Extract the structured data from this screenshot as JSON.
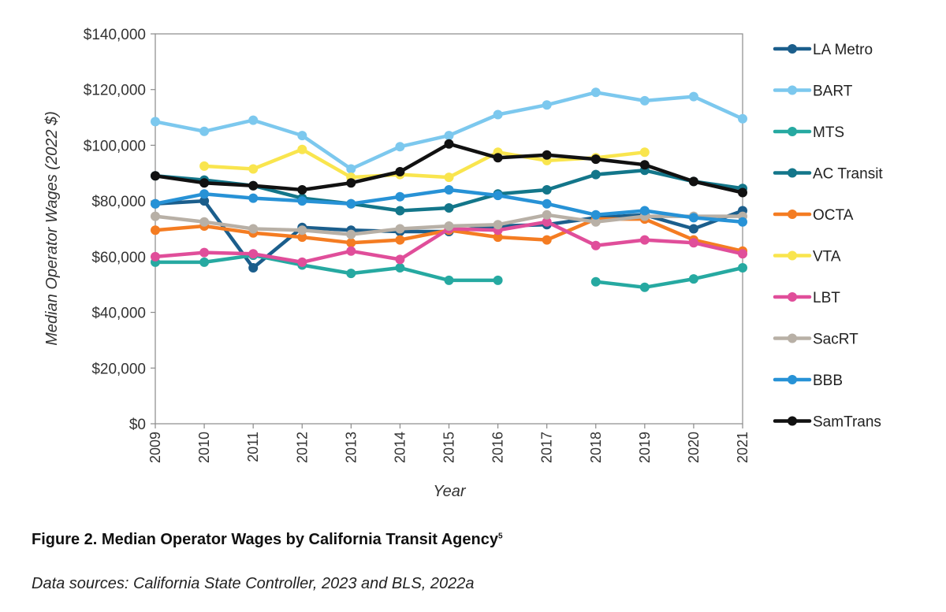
{
  "chart_data": {
    "type": "line",
    "title": "",
    "xlabel": "Year",
    "ylabel": "Median Operator Wages (2022 $)",
    "ylim": [
      0,
      140000
    ],
    "yticks": [
      "$0",
      "$20,000",
      "$40,000",
      "$60,000",
      "$80,000",
      "$100,000",
      "$120,000",
      "$140,000"
    ],
    "x": [
      "2009",
      "2010",
      "2011",
      "2012",
      "2013",
      "2014",
      "2015",
      "2016",
      "2017",
      "2018",
      "2019",
      "2020",
      "2021"
    ],
    "grid": false,
    "legend_position": "right",
    "series": [
      {
        "name": "LA Metro",
        "color": "#1b5e8c",
        "values": [
          79000,
          80000,
          56000,
          70500,
          69500,
          69000,
          69000,
          71000,
          71500,
          74000,
          75000,
          70000,
          76500
        ]
      },
      {
        "name": "BART",
        "color": "#7cc8ee",
        "values": [
          108500,
          105000,
          109000,
          103500,
          91500,
          99500,
          103500,
          111000,
          114500,
          119000,
          116000,
          117500,
          109500
        ]
      },
      {
        "name": "MTS",
        "color": "#26a9a1",
        "values": [
          58000,
          58000,
          60500,
          57000,
          54000,
          56000,
          51500,
          51500,
          null,
          51000,
          49000,
          52000,
          56000
        ]
      },
      {
        "name": "AC Transit",
        "color": "#13768a",
        "values": [
          89000,
          87500,
          85500,
          81000,
          79000,
          76500,
          77500,
          82500,
          84000,
          89500,
          91000,
          87000,
          84500
        ]
      },
      {
        "name": "OCTA",
        "color": "#f47c22",
        "values": [
          69500,
          71000,
          68500,
          67000,
          65000,
          66000,
          69500,
          67000,
          66000,
          73500,
          73500,
          66000,
          62000
        ]
      },
      {
        "name": "VTA",
        "color": "#f9e54e",
        "values": [
          null,
          92500,
          91500,
          98500,
          88500,
          89500,
          88500,
          97500,
          94500,
          95500,
          97500,
          null,
          null
        ]
      },
      {
        "name": "LBT",
        "color": "#e04e9a",
        "values": [
          60000,
          61500,
          61000,
          58000,
          62000,
          59000,
          70000,
          69500,
          72500,
          64000,
          66000,
          65000,
          61000
        ]
      },
      {
        "name": "SacRT",
        "color": "#b8b0a6",
        "values": [
          74500,
          72500,
          70000,
          69500,
          68000,
          70000,
          71000,
          71500,
          75000,
          72500,
          74500,
          74500,
          74500
        ]
      },
      {
        "name": "BBB",
        "color": "#2792d6",
        "values": [
          79000,
          82500,
          81000,
          80000,
          79000,
          81500,
          84000,
          82000,
          79000,
          75000,
          76500,
          74000,
          72500
        ]
      },
      {
        "name": "SamTrans",
        "color": "#111111",
        "values": [
          89000,
          86500,
          85500,
          84000,
          86500,
          90500,
          100500,
          95500,
          96500,
          95000,
          93000,
          87000,
          83000
        ]
      }
    ]
  },
  "caption": {
    "title": "Figure 2. Median Operator Wages by California Transit Agency",
    "footnote": "5",
    "sources": "Data sources: California State Controller, 2023 and BLS, 2022a"
  }
}
